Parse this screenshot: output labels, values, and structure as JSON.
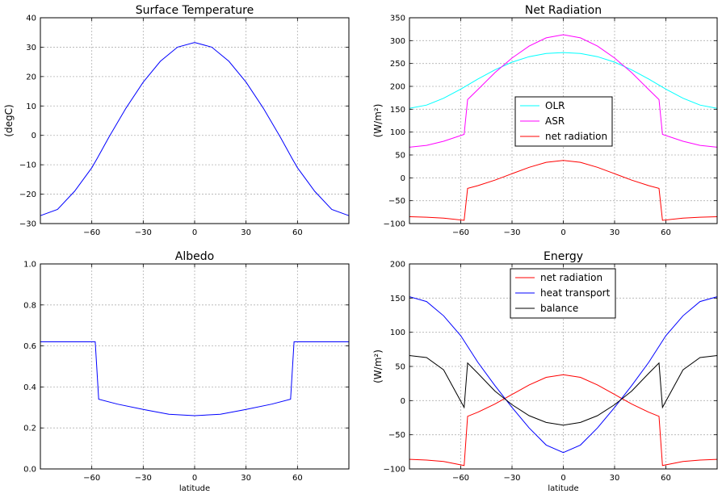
{
  "colors": {
    "blue": "#0000ff",
    "cyan": "#00ffff",
    "magenta": "#ff00ff",
    "red": "#ff0000",
    "black": "#000000"
  },
  "chart_data": [
    {
      "type": "line",
      "title": "Surface Temperature",
      "ylabel": "(degC)",
      "xlabel": "",
      "xlim": [
        -90,
        90
      ],
      "ylim": [
        -30,
        40
      ],
      "xticks": [
        -60,
        -30,
        0,
        30,
        60
      ],
      "xtick_labels": [
        "−60",
        "−30",
        "0",
        "30",
        "60"
      ],
      "yticks": [
        -30,
        -20,
        -10,
        0,
        10,
        20,
        30,
        40
      ],
      "ytick_labels": [
        "−30",
        "−20",
        "−10",
        "0",
        "10",
        "20",
        "30",
        "40"
      ],
      "grid": true,
      "legend": null,
      "series": [
        {
          "color": "#0000ff",
          "x": [
            -90,
            -80,
            -70,
            -60,
            -57,
            -50,
            -40,
            -30,
            -20,
            -10,
            0,
            10,
            20,
            30,
            40,
            50,
            57,
            60,
            70,
            80,
            90
          ],
          "y": [
            -27.3,
            -25.2,
            -19.0,
            -11.0,
            -8.0,
            -0.6,
            9.3,
            18.1,
            25.2,
            30.0,
            31.6,
            30.0,
            25.2,
            18.1,
            9.3,
            -0.6,
            -8.0,
            -11.0,
            -19.0,
            -25.2,
            -27.3
          ]
        }
      ]
    },
    {
      "type": "line",
      "title": "Net Radiation",
      "ylabel": "(W/m²)",
      "xlabel": "",
      "xlim": [
        -90,
        90
      ],
      "ylim": [
        -100,
        350
      ],
      "xticks": [
        -60,
        -30,
        0,
        30,
        60
      ],
      "xtick_labels": [
        "−60",
        "−30",
        "0",
        "30",
        "60"
      ],
      "yticks": [
        -100,
        -50,
        0,
        50,
        100,
        150,
        200,
        250,
        300,
        350
      ],
      "ytick_labels": [
        "−100",
        "−50",
        "0",
        "50",
        "100",
        "150",
        "200",
        "250",
        "300",
        "350"
      ],
      "grid": true,
      "legend": "center-right",
      "series": [
        {
          "name": "OLR",
          "color": "#00ffff",
          "x": [
            -90,
            -80,
            -70,
            -60,
            -50,
            -40,
            -30,
            -20,
            -10,
            0,
            10,
            20,
            30,
            40,
            50,
            60,
            70,
            80,
            90
          ],
          "y": [
            152,
            159,
            174,
            194,
            216,
            236,
            253,
            265,
            272,
            274,
            272,
            265,
            253,
            236,
            216,
            194,
            174,
            159,
            152
          ]
        },
        {
          "name": "ASR",
          "color": "#ff00ff",
          "x": [
            -90,
            -80,
            -70,
            -58,
            -56,
            -50,
            -40,
            -30,
            -20,
            -10,
            0,
            10,
            20,
            30,
            40,
            50,
            56,
            58,
            70,
            80,
            90
          ],
          "y": [
            67,
            71,
            80,
            95,
            171,
            193,
            230,
            262,
            288,
            306,
            313,
            306,
            288,
            262,
            230,
            193,
            171,
            95,
            80,
            71,
            67
          ]
        },
        {
          "name": "net radiation",
          "color": "#ff0000",
          "x": [
            -90,
            -80,
            -70,
            -58,
            -56,
            -50,
            -40,
            -30,
            -20,
            -10,
            0,
            10,
            20,
            30,
            40,
            50,
            56,
            58,
            70,
            80,
            90
          ],
          "y": [
            -85,
            -86,
            -88,
            -93,
            -23,
            -17,
            -5,
            9,
            23,
            34,
            38,
            34,
            23,
            9,
            -5,
            -17,
            -23,
            -93,
            -88,
            -86,
            -85
          ]
        }
      ]
    },
    {
      "type": "line",
      "title": "Albedo",
      "ylabel": "",
      "xlabel": "latitude",
      "xlim": [
        -90,
        90
      ],
      "ylim": [
        0.0,
        1.0
      ],
      "xticks": [
        -60,
        -30,
        0,
        30,
        60
      ],
      "xtick_labels": [
        "−60",
        "−30",
        "0",
        "30",
        "60"
      ],
      "yticks": [
        0.0,
        0.2,
        0.4,
        0.6,
        0.8,
        1.0
      ],
      "ytick_labels": [
        "0.0",
        "0.2",
        "0.4",
        "0.6",
        "0.8",
        "1.0"
      ],
      "grid": true,
      "legend": null,
      "series": [
        {
          "color": "#0000ff",
          "x": [
            -90,
            -58,
            -56,
            -45,
            -30,
            -15,
            0,
            15,
            30,
            45,
            56,
            58,
            90
          ],
          "y": [
            0.62,
            0.62,
            0.34,
            0.316,
            0.29,
            0.267,
            0.26,
            0.267,
            0.29,
            0.316,
            0.34,
            0.62,
            0.62
          ]
        }
      ]
    },
    {
      "type": "line",
      "title": "Energy",
      "ylabel": "(W/m²)",
      "xlabel": "latitude",
      "xlim": [
        -90,
        90
      ],
      "ylim": [
        -100,
        200
      ],
      "xticks": [
        -60,
        -30,
        0,
        30,
        60
      ],
      "xtick_labels": [
        "−60",
        "−30",
        "0",
        "30",
        "60"
      ],
      "yticks": [
        -100,
        -50,
        0,
        50,
        100,
        150,
        200
      ],
      "ytick_labels": [
        "−100",
        "−50",
        "0",
        "50",
        "100",
        "150",
        "200"
      ],
      "grid": true,
      "legend": "top-center",
      "series": [
        {
          "name": "net radiation",
          "color": "#ff0000",
          "x": [
            -90,
            -80,
            -70,
            -58,
            -56,
            -50,
            -40,
            -30,
            -20,
            -10,
            0,
            10,
            20,
            30,
            40,
            50,
            56,
            58,
            70,
            80,
            90
          ],
          "y": [
            -86,
            -87,
            -89,
            -95,
            -23,
            -17,
            -5,
            9,
            23,
            34,
            38,
            34,
            23,
            9,
            -5,
            -17,
            -23,
            -95,
            -89,
            -87,
            -86
          ]
        },
        {
          "name": "heat transport",
          "color": "#0000ff",
          "x": [
            -90,
            -80,
            -70,
            -60,
            -50,
            -40,
            -30,
            -20,
            -10,
            0,
            10,
            20,
            30,
            40,
            50,
            60,
            70,
            80,
            90
          ],
          "y": [
            152,
            145,
            124,
            95,
            56,
            22,
            -10,
            -40,
            -65,
            -76,
            -65,
            -40,
            -10,
            22,
            56,
            95,
            124,
            145,
            152
          ]
        },
        {
          "name": "balance",
          "color": "#000000",
          "x": [
            -90,
            -80,
            -70,
            -58,
            -56,
            -50,
            -40,
            -30,
            -20,
            -10,
            0,
            10,
            20,
            30,
            40,
            50,
            56,
            58,
            70,
            80,
            90
          ],
          "y": [
            66,
            63,
            45,
            -10,
            55,
            40,
            14,
            -6,
            -22,
            -32,
            -36,
            -32,
            -22,
            -6,
            14,
            40,
            55,
            -10,
            45,
            63,
            66
          ]
        }
      ]
    }
  ]
}
